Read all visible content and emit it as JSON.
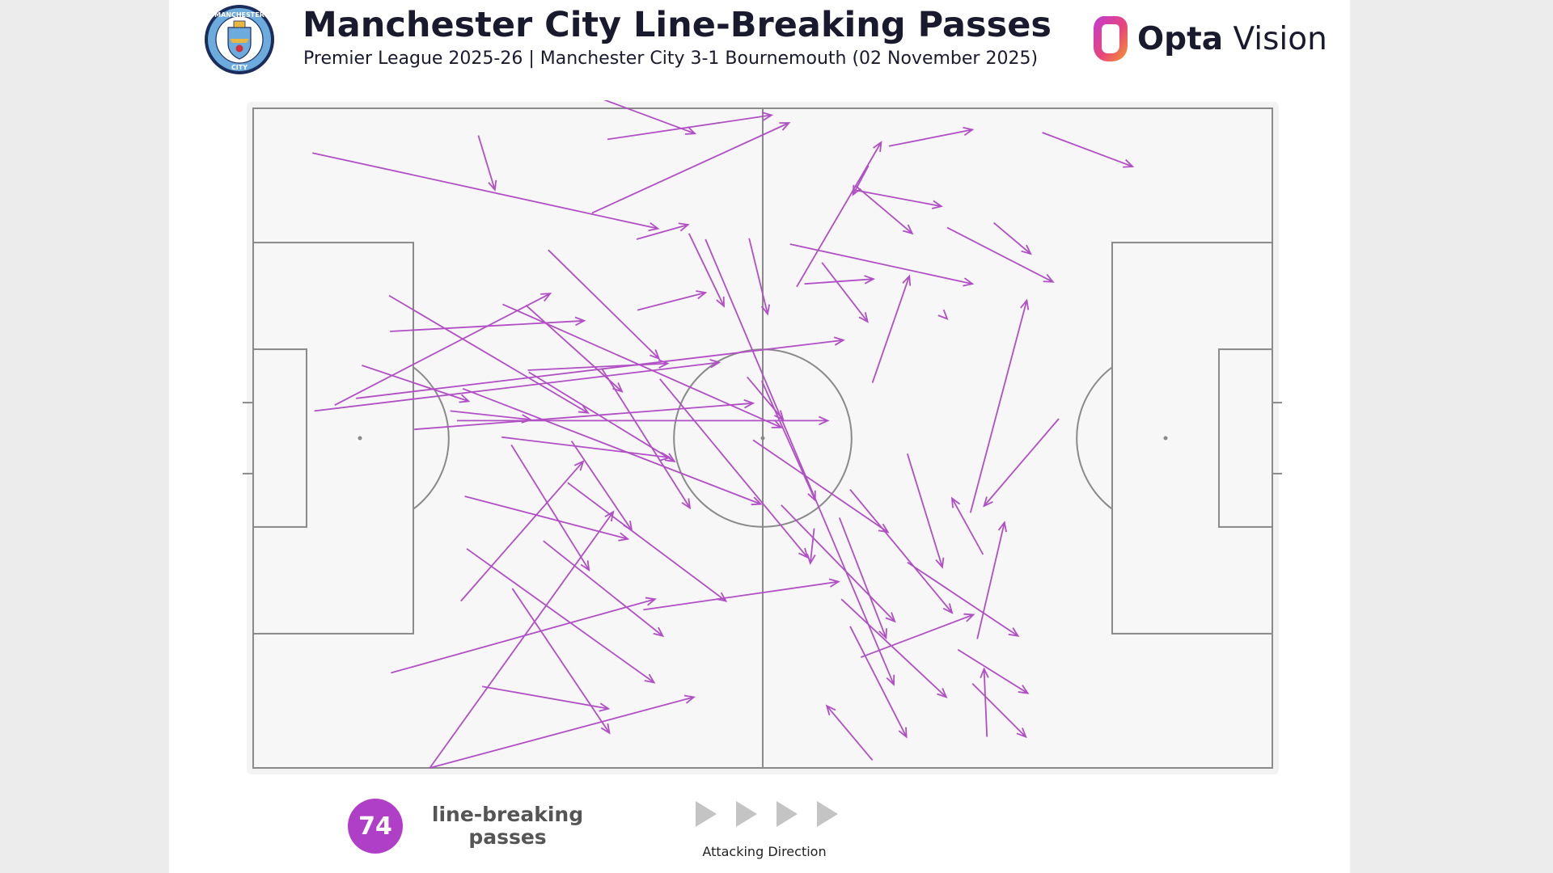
{
  "header": {
    "title": "Manchester City Line-Breaking Passes",
    "subtitle": "Premier League 2025-26 | Manchester City 3-1 Bournemouth (02 November 2025)",
    "brand_bold": "Opta",
    "brand_light": "Vision",
    "crest_top_text": "MANCHESTER",
    "crest_bottom_text": "CITY"
  },
  "footer": {
    "count": "74",
    "count_label_line1": "line-breaking",
    "count_label_line2": "passes",
    "direction_label": "Attacking Direction"
  },
  "colors": {
    "arrow": "#b14fc5",
    "badge": "#b03fc8",
    "pitch_bg": "#f7f7f7",
    "pitch_lines": "#8a8a8a",
    "direction_arrows": "#c4c4c4",
    "crest_blue": "#6cabdd",
    "crest_navy": "#1c2c5b"
  },
  "icons": {
    "crest": "manchester-city-crest",
    "brand": "opta-vision-logo",
    "direction": "play-triangle-icon"
  },
  "chart_data": {
    "type": "pass-map",
    "pitch": {
      "length": 105,
      "width": 68
    },
    "attacking_direction": "right",
    "count": 74,
    "passes": [
      [
        6.1,
        63.4,
        41.7,
        55.6
      ],
      [
        23.2,
        65.2,
        24.9,
        59.6
      ],
      [
        36.5,
        64.8,
        53.4,
        67.3
      ],
      [
        35.3,
        69.2,
        45.5,
        65.4
      ],
      [
        34.9,
        57.2,
        55.2,
        66.5
      ],
      [
        30.4,
        53.4,
        41.8,
        42.2
      ],
      [
        39.6,
        47.2,
        46.6,
        49.0
      ],
      [
        28.3,
        41.0,
        42.7,
        41.7
      ],
      [
        39.5,
        54.5,
        44.8,
        56.0
      ],
      [
        51.1,
        54.6,
        53.0,
        46.8
      ],
      [
        56.0,
        49.6,
        64.7,
        64.5
      ],
      [
        56.8,
        49.9,
        63.9,
        50.4
      ],
      [
        58.6,
        52.1,
        63.3,
        46.0
      ],
      [
        65.5,
        64.1,
        74.1,
        65.8
      ],
      [
        71.4,
        46.4,
        71.5,
        46.3
      ],
      [
        61.8,
        59.6,
        70.9,
        57.9
      ],
      [
        76.3,
        56.2,
        80.1,
        53.0
      ],
      [
        71.5,
        55.7,
        82.4,
        50.1
      ],
      [
        81.3,
        65.5,
        90.6,
        62.0
      ],
      [
        63.8,
        39.7,
        67.6,
        50.7
      ],
      [
        63.4,
        62.1,
        61.8,
        59.1
      ],
      [
        62.1,
        60.0,
        67.9,
        55.1
      ],
      [
        55.3,
        54.0,
        74.1,
        49.9
      ],
      [
        73.9,
        26.3,
        79.7,
        48.2
      ],
      [
        83.0,
        36.0,
        75.3,
        27.0
      ],
      [
        46.6,
        54.5,
        66.0,
        8.6
      ],
      [
        50.9,
        40.3,
        54.6,
        35.9
      ],
      [
        14.0,
        48.7,
        34.5,
        36.6
      ],
      [
        14.1,
        45.0,
        34.1,
        46.1
      ],
      [
        20.3,
        36.8,
        28.6,
        35.9
      ],
      [
        25.7,
        47.8,
        54.4,
        35.1
      ],
      [
        16.6,
        34.9,
        51.5,
        37.6
      ],
      [
        11.2,
        41.5,
        22.2,
        37.8
      ],
      [
        21.0,
        35.8,
        59.2,
        35.8
      ],
      [
        28.4,
        40.8,
        43.4,
        31.6
      ],
      [
        6.3,
        36.8,
        48.0,
        41.8
      ],
      [
        10.6,
        38.1,
        60.8,
        44.1
      ],
      [
        28.1,
        47.7,
        38.0,
        38.8
      ],
      [
        8.4,
        37.4,
        30.6,
        48.9
      ],
      [
        21.6,
        39.1,
        52.3,
        27.2
      ],
      [
        35.9,
        41.2,
        45.0,
        26.8
      ],
      [
        51.5,
        33.8,
        65.4,
        24.3
      ],
      [
        44.9,
        55.1,
        48.5,
        47.6
      ],
      [
        41.9,
        40.1,
        57.1,
        21.7
      ],
      [
        52.4,
        39.9,
        57.9,
        27.6
      ],
      [
        25.6,
        34.1,
        42.9,
        32.0
      ],
      [
        32.8,
        33.7,
        39.0,
        24.5
      ],
      [
        40.2,
        16.3,
        60.3,
        19.2
      ],
      [
        21.8,
        28.0,
        38.6,
        23.6
      ],
      [
        32.4,
        29.4,
        48.7,
        17.2
      ],
      [
        26.6,
        33.3,
        34.6,
        20.4
      ],
      [
        21.4,
        17.2,
        34.0,
        31.6
      ],
      [
        14.2,
        9.8,
        41.4,
        17.4
      ],
      [
        22.0,
        22.6,
        41.3,
        8.8
      ],
      [
        18.2,
        0.0,
        45.4,
        7.3
      ],
      [
        18.2,
        0.0,
        37.1,
        26.4
      ],
      [
        23.6,
        8.4,
        36.6,
        6.1
      ],
      [
        29.9,
        23.4,
        42.2,
        13.6
      ],
      [
        26.7,
        18.5,
        36.7,
        3.6
      ],
      [
        63.8,
        0.8,
        59.1,
        6.4
      ],
      [
        60.4,
        25.8,
        65.2,
        13.4
      ],
      [
        54.4,
        27.1,
        66.1,
        15.1
      ],
      [
        57.8,
        24.7,
        57.4,
        21.1
      ],
      [
        67.4,
        32.4,
        71.0,
        20.7
      ],
      [
        61.5,
        28.7,
        72.0,
        16.0
      ],
      [
        74.6,
        13.3,
        77.4,
        25.3
      ],
      [
        62.6,
        11.4,
        74.2,
        15.8
      ],
      [
        61.5,
        14.6,
        67.3,
        3.2
      ],
      [
        67.4,
        21.2,
        78.8,
        13.6
      ],
      [
        72.6,
        12.2,
        79.8,
        7.7
      ],
      [
        60.6,
        17.4,
        71.4,
        7.3
      ],
      [
        75.6,
        3.2,
        75.3,
        10.2
      ],
      [
        74.1,
        8.7,
        79.6,
        3.2
      ],
      [
        75.2,
        22.0,
        72.0,
        27.8
      ]
    ]
  }
}
